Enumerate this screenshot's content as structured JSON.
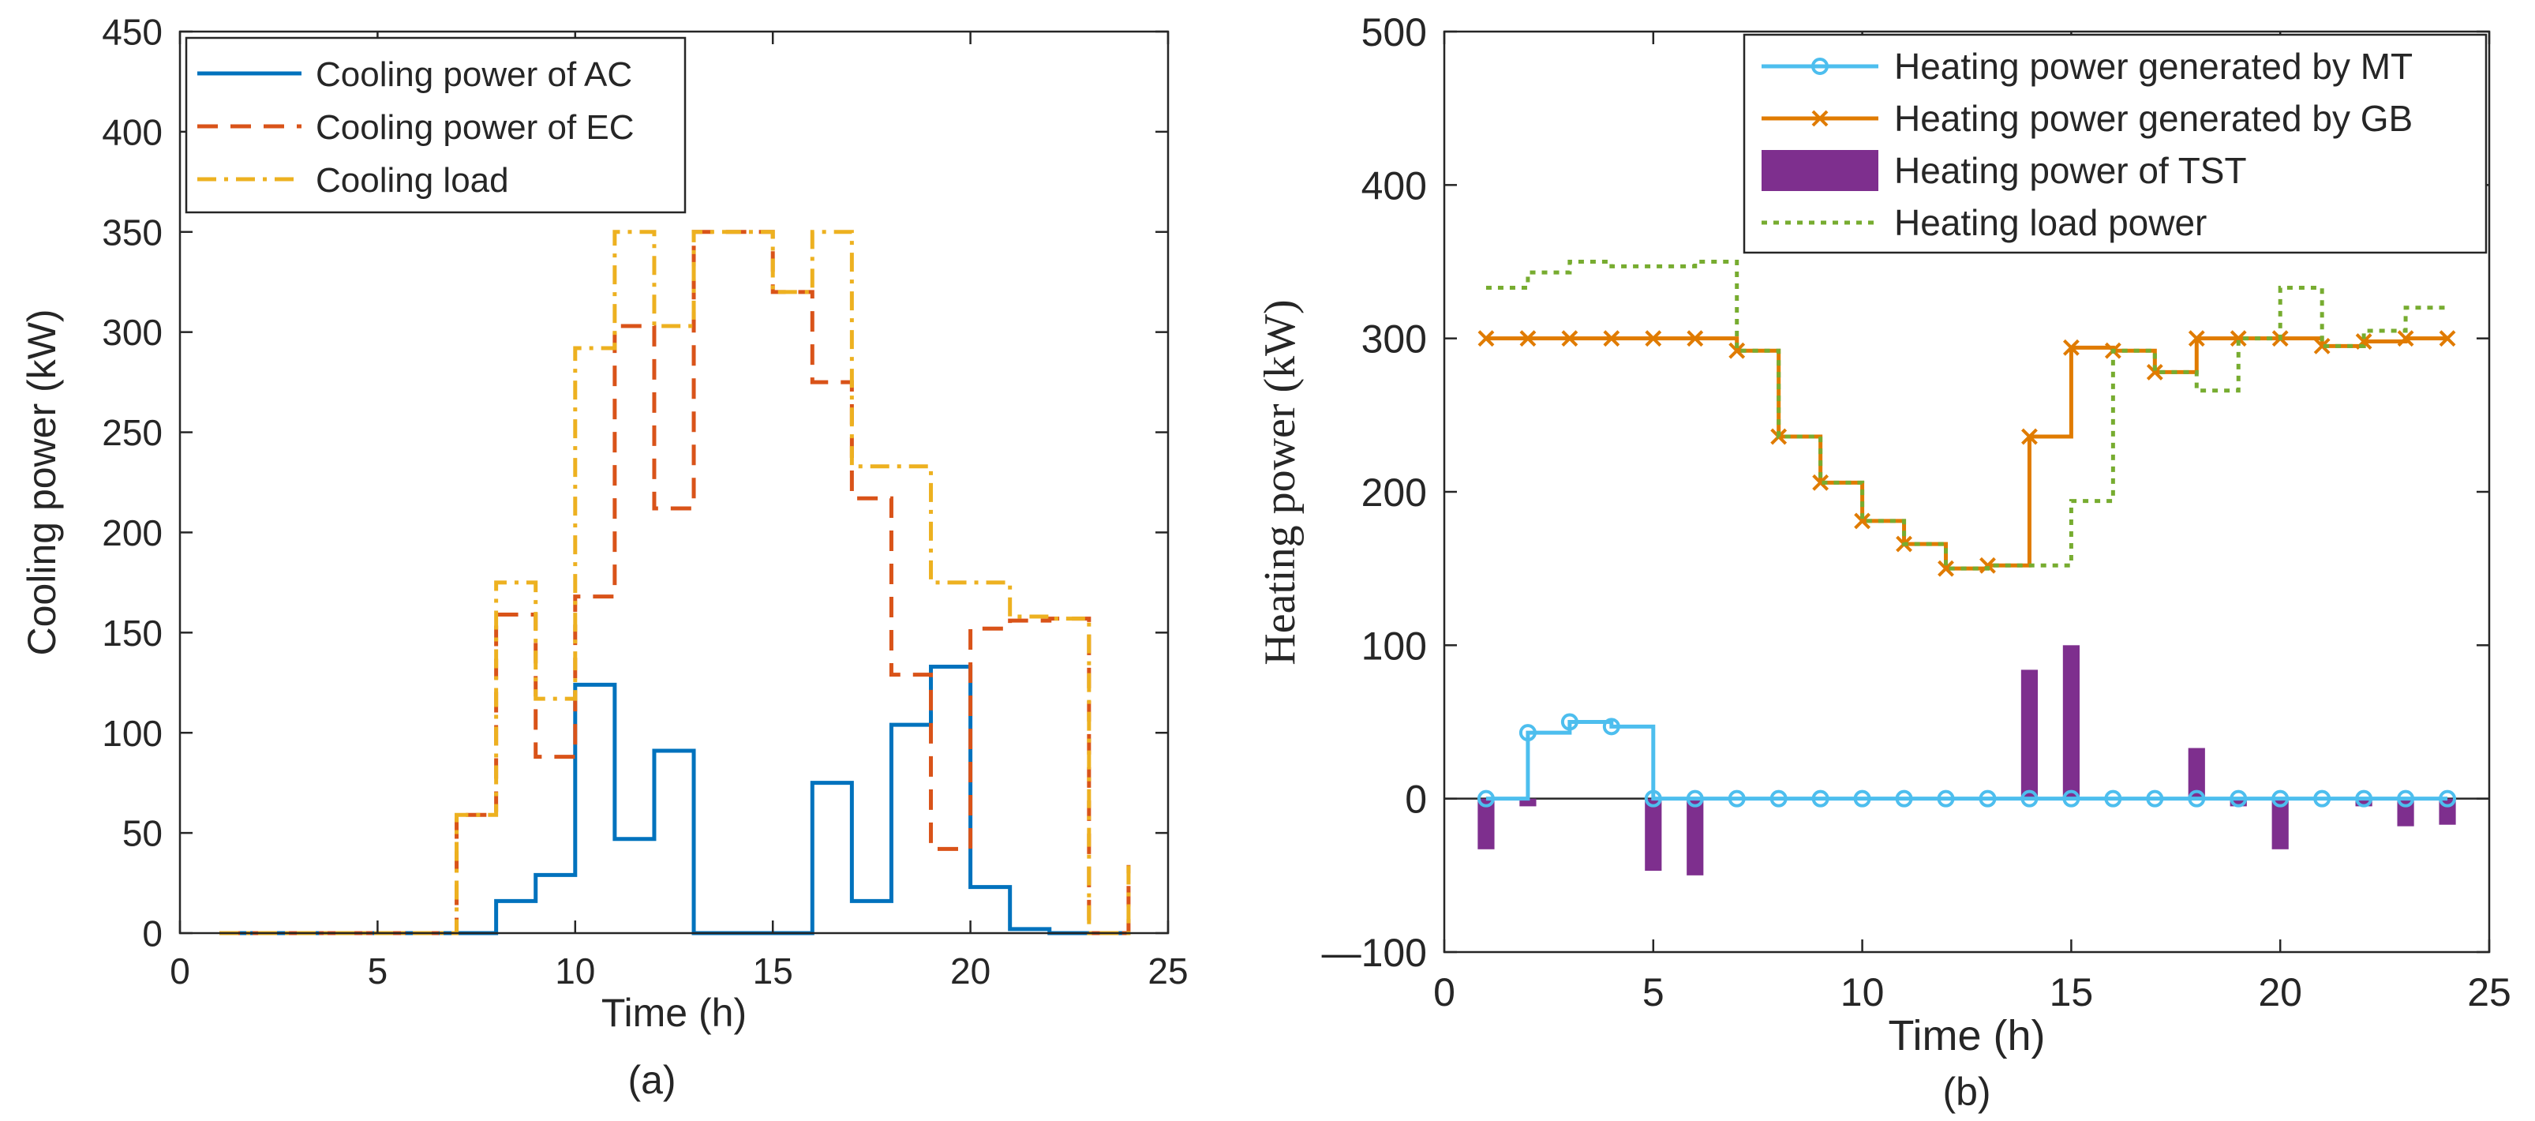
{
  "chart_data": [
    {
      "id": "a",
      "type": "line",
      "step": "post",
      "panel_label": "(a)",
      "xlabel": "Time (h)",
      "ylabel": "Cooling power (kW)",
      "xlim": [
        0,
        25
      ],
      "ylim": [
        0,
        450
      ],
      "xticks": [
        0,
        5,
        10,
        15,
        20,
        25
      ],
      "yticks": [
        0,
        50,
        100,
        150,
        200,
        250,
        300,
        350,
        400,
        450
      ],
      "x": [
        1,
        2,
        3,
        4,
        5,
        6,
        7,
        8,
        9,
        10,
        11,
        12,
        13,
        14,
        15,
        16,
        17,
        18,
        19,
        20,
        21,
        22,
        23,
        24
      ],
      "legend_position": "top-left",
      "series": [
        {
          "name": "Cooling power of AC",
          "color": "#0072BD",
          "style": "solid",
          "values": [
            0,
            0,
            0,
            0,
            0,
            0,
            0,
            16,
            29,
            124,
            47,
            91,
            0,
            0,
            0,
            75,
            16,
            104,
            133,
            23,
            2,
            0,
            0,
            0
          ]
        },
        {
          "name": "Cooling power of EC",
          "color": "#D95319",
          "style": "dashed",
          "values": [
            0,
            0,
            0,
            0,
            0,
            0,
            59,
            159,
            88,
            168,
            303,
            212,
            350,
            350,
            320,
            275,
            217,
            129,
            42,
            152,
            156,
            157,
            0,
            34
          ]
        },
        {
          "name": "Cooling load",
          "color": "#EDB120",
          "style": "dashdot",
          "values": [
            0,
            0,
            0,
            0,
            0,
            0,
            59,
            175,
            117,
            292,
            350,
            303,
            350,
            350,
            320,
            350,
            233,
            233,
            175,
            175,
            158,
            157,
            0,
            34
          ]
        }
      ]
    },
    {
      "id": "b",
      "type": "line",
      "step": "post",
      "panel_label": "(b)",
      "xlabel": "Time (h)",
      "ylabel": "Heating power (kW)",
      "xlim": [
        0,
        25
      ],
      "ylim": [
        -100,
        500
      ],
      "xticks": [
        0,
        5,
        10,
        15,
        20,
        25
      ],
      "yticks": [
        -100,
        0,
        100,
        200,
        300,
        400,
        500
      ],
      "ytick_labels": [
        "—100",
        "0",
        "100",
        "200",
        "300",
        "400",
        "500"
      ],
      "x": [
        1,
        2,
        3,
        4,
        5,
        6,
        7,
        8,
        9,
        10,
        11,
        12,
        13,
        14,
        15,
        16,
        17,
        18,
        19,
        20,
        21,
        22,
        23,
        24
      ],
      "legend_position": "top-right",
      "series": [
        {
          "name": "Heating power generated by MT",
          "color": "#4DBEEE",
          "style": "solid",
          "marker": "circle",
          "values": [
            0,
            43,
            50,
            47,
            0,
            0,
            0,
            0,
            0,
            0,
            0,
            0,
            0,
            0,
            0,
            0,
            0,
            0,
            0,
            0,
            0,
            0,
            0,
            0
          ]
        },
        {
          "name": "Heating power generated by GB",
          "color": "#E07B00",
          "style": "solid",
          "marker": "x",
          "values": [
            300,
            300,
            300,
            300,
            300,
            300,
            292,
            236,
            206,
            181,
            166,
            150,
            152,
            236,
            294,
            292,
            278,
            300,
            300,
            300,
            295,
            298,
            300,
            300
          ]
        },
        {
          "name": "Heating power of TST",
          "color": "#7E2F8E",
          "style": "bar",
          "values": [
            -33,
            -5,
            0,
            0,
            -47,
            -50,
            0,
            0,
            0,
            0,
            0,
            0,
            0,
            84,
            100,
            0,
            0,
            33,
            -5,
            -33,
            0,
            -5,
            -18,
            -17
          ]
        },
        {
          "name": "Heating load power",
          "color": "#77AC30",
          "style": "dotted",
          "values": [
            333,
            343,
            350,
            347,
            347,
            350,
            292,
            236,
            206,
            181,
            166,
            150,
            152,
            152,
            194,
            292,
            278,
            266,
            300,
            333,
            295,
            305,
            320,
            320
          ]
        }
      ]
    }
  ]
}
